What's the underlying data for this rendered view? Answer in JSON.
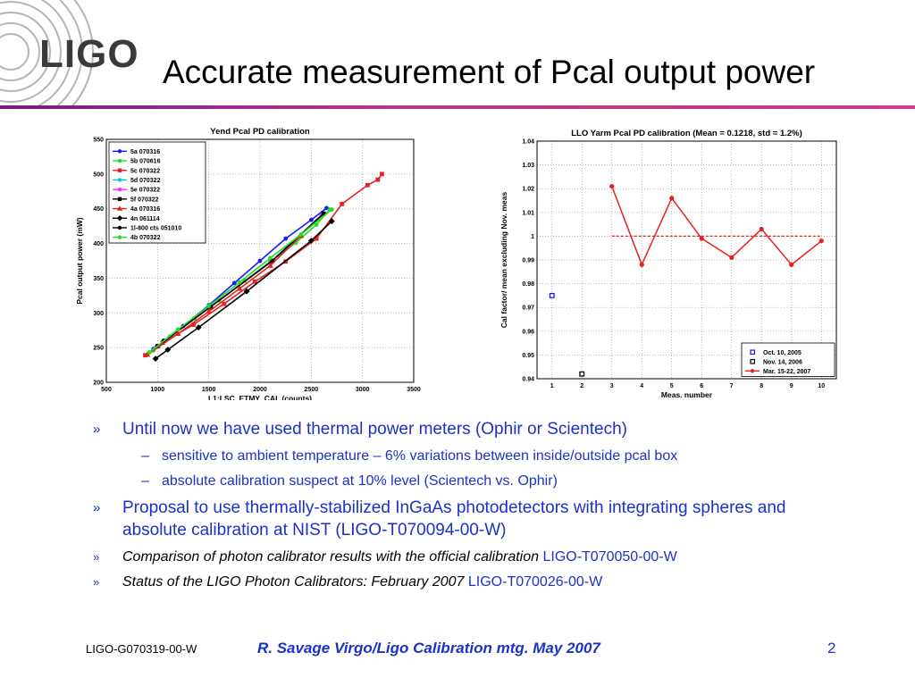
{
  "logo": {
    "text": "LIGO"
  },
  "title": "Accurate measurement of Pcal output power",
  "chart_data": [
    {
      "type": "line",
      "title": "Yend Pcal PD calibration",
      "xlabel": "L1:LSC_ETMY_CAL (counts)",
      "ylabel": "Pcal output power (mW)",
      "xlim": [
        500,
        3500
      ],
      "ylim": [
        200,
        550
      ],
      "xticks": [
        500,
        1000,
        1500,
        2000,
        2500,
        3000,
        3500
      ],
      "yticks": [
        200,
        250,
        300,
        350,
        400,
        450,
        500,
        550
      ],
      "grid": true,
      "legend_position": "top-left",
      "series": [
        {
          "name": "5a 070316",
          "color": "#1a1aff",
          "marker": "circle",
          "x": [
            960,
            1250,
            1500,
            1750,
            2000,
            2250,
            2500,
            2650
          ],
          "y": [
            248,
            281,
            311,
            343,
            375,
            407,
            434,
            451
          ]
        },
        {
          "name": "5b 070616",
          "color": "#22dd22",
          "marker": "circle",
          "x": [
            960,
            1120,
            1360,
            1600,
            1850,
            2100,
            2350,
            2550,
            2680
          ],
          "y": [
            246,
            266,
            292,
            318,
            346,
            374,
            401,
            427,
            449
          ]
        },
        {
          "name": "5c 070322",
          "color": "#e62020",
          "marker": "square",
          "x": [
            880,
            1050,
            1350,
            1650,
            1950,
            2250,
            2550,
            2800,
            3050,
            3150,
            3190
          ],
          "y": [
            239,
            257,
            283,
            313,
            345,
            374,
            407,
            457,
            484,
            492,
            500
          ]
        },
        {
          "name": "5d 070322",
          "color": "#00c8e6",
          "marker": "circle",
          "x": [
            980,
            1500,
            2100,
            2600
          ],
          "y": [
            250,
            307,
            373,
            441
          ]
        },
        {
          "name": "5e 070322",
          "color": "#ff22ff",
          "marker": "circle",
          "x": [
            990,
            1510,
            2110,
            2610
          ],
          "y": [
            251,
            308,
            374,
            442
          ]
        },
        {
          "name": "5f 070322",
          "color": "#000000",
          "marker": "square",
          "x": [
            1000,
            1520,
            2120,
            2620
          ],
          "y": [
            252,
            309,
            375,
            443
          ]
        },
        {
          "name": "4a 070316",
          "color": "#e62020",
          "marker": "triangle",
          "x": [
            900,
            1200,
            1500,
            1800,
            2100,
            2400
          ],
          "y": [
            240,
            270,
            302,
            335,
            368,
            411
          ]
        },
        {
          "name": "4n 061114",
          "color": "#000000",
          "marker": "diamond",
          "x": [
            980,
            1100,
            1400,
            1870,
            2500,
            2700
          ],
          "y": [
            234,
            247,
            279,
            331,
            404,
            432
          ]
        },
        {
          "name": "1l-800 cts 051010",
          "color": "#000000",
          "marker": "circle",
          "x": [
            1060
          ],
          "y": [
            260
          ]
        },
        {
          "name": "4b 070322",
          "color": "#22dd22",
          "marker": "circle",
          "x": [
            920,
            1200,
            1500,
            1800,
            2100,
            2400,
            2700
          ],
          "y": [
            243,
            276,
            310,
            344,
            379,
            413,
            449
          ]
        }
      ]
    },
    {
      "type": "line",
      "title": "LLO Yarm Pcal PD calibration (Mean = 0.1218, std = 1.2%)",
      "xlabel": "Meas. number",
      "ylabel": "Cal factor/ mean excluding Nov. meas",
      "xlim": [
        0.5,
        10.5
      ],
      "ylim": [
        0.94,
        1.04
      ],
      "xticks": [
        1,
        2,
        3,
        4,
        5,
        6,
        7,
        8,
        9,
        10
      ],
      "yticks": [
        "0.94",
        "0.95",
        "0.96",
        "0.97",
        "0.98",
        "0.99",
        "1",
        "1.01",
        "1.02",
        "1.03",
        "1.04"
      ],
      "grid": true,
      "legend_position": "bottom-right",
      "reference_line": {
        "y": 1.0,
        "x_from": 3,
        "x_to": 10,
        "color": "#e62020"
      },
      "series": [
        {
          "name": "Oct. 10, 2005",
          "color": "#1a1aff",
          "marker": "square",
          "x": [
            1
          ],
          "y": [
            0.975
          ]
        },
        {
          "name": "Nov. 14, 2006",
          "color": "#000000",
          "marker": "square",
          "x": [
            2
          ],
          "y": [
            0.942
          ]
        },
        {
          "name": "Mar. 15-22, 2007",
          "color": "#e62020",
          "marker": "circle",
          "x": [
            3,
            4,
            5,
            6,
            7,
            8,
            9,
            10
          ],
          "y": [
            1.021,
            0.988,
            1.016,
            0.999,
            0.991,
            1.003,
            0.988,
            0.998
          ]
        }
      ]
    }
  ],
  "bullets": [
    {
      "level": 1,
      "marker": "»",
      "text": "Until now we have used thermal power meters (Ophir or Scientech)"
    },
    {
      "level": 2,
      "marker": "–",
      "text": "sensitive to ambient temperature – 6% variations between inside/outside pcal box"
    },
    {
      "level": 2,
      "marker": "–",
      "text": "absolute calibration suspect at 10% level (Scientech vs. Ophir)"
    },
    {
      "level": 1,
      "marker": "»",
      "text": "Proposal to use thermally-stabilized InGaAs photodetectors with integrating spheres and absolute calibration at NIST (LIGO-T070094-00-W)"
    },
    {
      "level": 3,
      "marker": "»",
      "text": "Comparison of photon calibrator results with the official calibration",
      "ref": "LIGO-T070050-00-W"
    },
    {
      "level": 3,
      "marker": "»",
      "text": "Status of the LIGO Photon Calibrators: February 2007",
      "ref": "LIGO-T070026-00-W"
    }
  ],
  "footer": {
    "doc_id": "LIGO-G070319-00-W",
    "center": "R. Savage Virgo/Ligo Calibration mtg.  May 2007",
    "page": "2"
  },
  "colors": {
    "accent_blue": "#1a32c8",
    "rule": "#b0358f"
  }
}
